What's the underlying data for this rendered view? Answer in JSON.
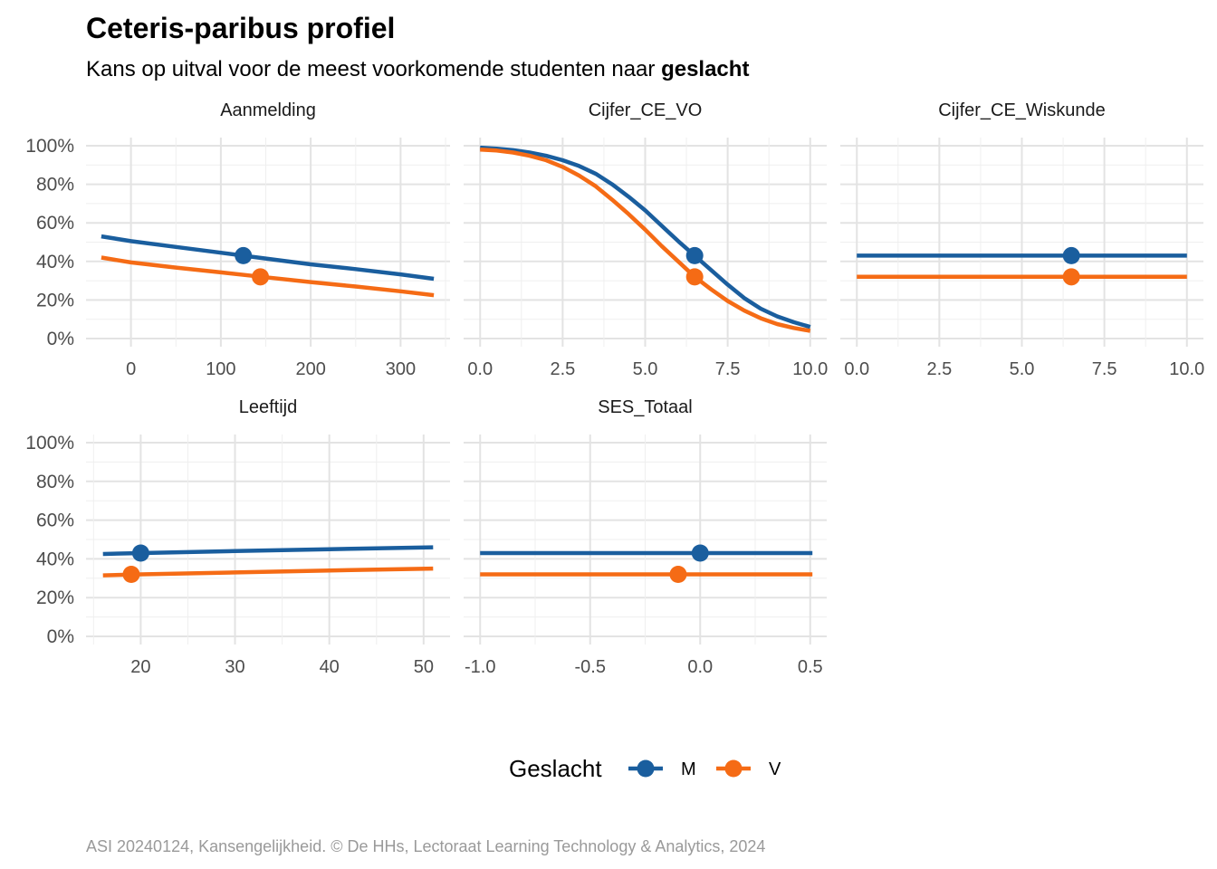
{
  "title": "Ceteris-paribus profiel",
  "subtitle_prefix": "Kans op uitval voor de meest voorkomende studenten naar ",
  "subtitle_bold": "geslacht",
  "caption": "ASI 20240124, Kansengelijkheid. © De HHs, Lectoraat Learning Technology & Analytics, 2024",
  "legend": {
    "title": "Geslacht",
    "items": [
      {
        "label": "M",
        "color": "#1a5e9e"
      },
      {
        "label": "V",
        "color": "#f56b15"
      }
    ]
  },
  "chart_data": {
    "type": "line",
    "y_ticks": [
      "0%",
      "20%",
      "40%",
      "60%",
      "80%",
      "100%"
    ],
    "ylim": [
      0,
      1
    ],
    "grid": true,
    "legend_position": "bottom",
    "panels": [
      {
        "name": "Aanmelding",
        "xlim": [
          -50,
          355
        ],
        "x_ticks": [
          {
            "v": 0,
            "t": "0"
          },
          {
            "v": 100,
            "t": "100"
          },
          {
            "v": 200,
            "t": "200"
          },
          {
            "v": 300,
            "t": "300"
          }
        ],
        "series": [
          {
            "name": "M",
            "x": [
              -33,
              0,
              50,
              100,
              150,
              200,
              250,
              300,
              337
            ],
            "y": [
              0.53,
              0.505,
              0.475,
              0.445,
              0.415,
              0.385,
              0.36,
              0.333,
              0.31
            ]
          },
          {
            "name": "V",
            "x": [
              -33,
              0,
              50,
              100,
              150,
              200,
              250,
              300,
              337
            ],
            "y": [
              0.42,
              0.395,
              0.368,
              0.343,
              0.318,
              0.293,
              0.27,
              0.245,
              0.225
            ]
          }
        ],
        "points": [
          {
            "name": "M",
            "x": 125,
            "y": 0.43
          },
          {
            "name": "V",
            "x": 144,
            "y": 0.32
          }
        ]
      },
      {
        "name": "Cijfer_CE_VO",
        "xlim": [
          -0.5,
          10.5
        ],
        "x_ticks": [
          {
            "v": 0,
            "t": "0.0"
          },
          {
            "v": 2.5,
            "t": "2.5"
          },
          {
            "v": 5,
            "t": "5.0"
          },
          {
            "v": 7.5,
            "t": "7.5"
          },
          {
            "v": 10,
            "t": "10.0"
          }
        ],
        "series": [
          {
            "name": "M",
            "x": [
              0,
              0.5,
              1,
              1.5,
              2,
              2.5,
              3,
              3.5,
              4,
              4.5,
              5,
              5.5,
              6,
              6.5,
              7,
              7.5,
              8,
              8.5,
              9,
              9.5,
              10
            ],
            "y": [
              0.99,
              0.985,
              0.977,
              0.965,
              0.948,
              0.925,
              0.895,
              0.855,
              0.8,
              0.735,
              0.665,
              0.585,
              0.505,
              0.43,
              0.355,
              0.28,
              0.21,
              0.155,
              0.115,
              0.085,
              0.06
            ]
          },
          {
            "name": "V",
            "x": [
              0,
              0.5,
              1,
              1.5,
              2,
              2.5,
              3,
              3.5,
              4,
              4.5,
              5,
              5.5,
              6,
              6.5,
              7,
              7.5,
              8,
              8.5,
              9,
              9.5,
              10
            ],
            "y": [
              0.98,
              0.975,
              0.965,
              0.948,
              0.925,
              0.89,
              0.845,
              0.79,
              0.72,
              0.645,
              0.565,
              0.48,
              0.4,
              0.32,
              0.255,
              0.195,
              0.145,
              0.105,
              0.075,
              0.055,
              0.04
            ]
          }
        ],
        "points": [
          {
            "name": "M",
            "x": 6.5,
            "y": 0.43
          },
          {
            "name": "V",
            "x": 6.5,
            "y": 0.32
          }
        ]
      },
      {
        "name": "Cijfer_CE_Wiskunde",
        "xlim": [
          -0.5,
          10.5
        ],
        "x_ticks": [
          {
            "v": 0,
            "t": "0.0"
          },
          {
            "v": 2.5,
            "t": "2.5"
          },
          {
            "v": 5,
            "t": "5.0"
          },
          {
            "v": 7.5,
            "t": "7.5"
          },
          {
            "v": 10,
            "t": "10.0"
          }
        ],
        "series": [
          {
            "name": "M",
            "x": [
              0,
              10
            ],
            "y": [
              0.43,
              0.43
            ]
          },
          {
            "name": "V",
            "x": [
              0,
              10
            ],
            "y": [
              0.32,
              0.32
            ]
          }
        ],
        "points": [
          {
            "name": "M",
            "x": 6.5,
            "y": 0.43
          },
          {
            "name": "V",
            "x": 6.5,
            "y": 0.32
          }
        ]
      },
      {
        "name": "Leeftijd",
        "xlim": [
          14.2,
          52.8
        ],
        "x_ticks": [
          {
            "v": 20,
            "t": "20"
          },
          {
            "v": 30,
            "t": "30"
          },
          {
            "v": 40,
            "t": "40"
          },
          {
            "v": 50,
            "t": "50"
          }
        ],
        "series": [
          {
            "name": "M",
            "x": [
              16,
              20,
              30,
              40,
              51
            ],
            "y": [
              0.425,
              0.43,
              0.44,
              0.45,
              0.46
            ]
          },
          {
            "name": "V",
            "x": [
              16,
              20,
              30,
              40,
              51
            ],
            "y": [
              0.315,
              0.32,
              0.33,
              0.34,
              0.35
            ]
          }
        ],
        "points": [
          {
            "name": "M",
            "x": 20,
            "y": 0.43
          },
          {
            "name": "V",
            "x": 19,
            "y": 0.32
          }
        ]
      },
      {
        "name": "SES_Totaal",
        "xlim": [
          -1.075,
          0.575
        ],
        "x_ticks": [
          {
            "v": -1,
            "t": "-1.0"
          },
          {
            "v": -0.5,
            "t": "-0.5"
          },
          {
            "v": 0,
            "t": "0.0"
          },
          {
            "v": 0.5,
            "t": "0.5"
          }
        ],
        "series": [
          {
            "name": "M",
            "x": [
              -1,
              0.51
            ],
            "y": [
              0.43,
              0.43
            ]
          },
          {
            "name": "V",
            "x": [
              -1,
              0.51
            ],
            "y": [
              0.32,
              0.32
            ]
          }
        ],
        "points": [
          {
            "name": "M",
            "x": 0,
            "y": 0.43
          },
          {
            "name": "V",
            "x": -0.1,
            "y": 0.32
          }
        ]
      }
    ]
  }
}
